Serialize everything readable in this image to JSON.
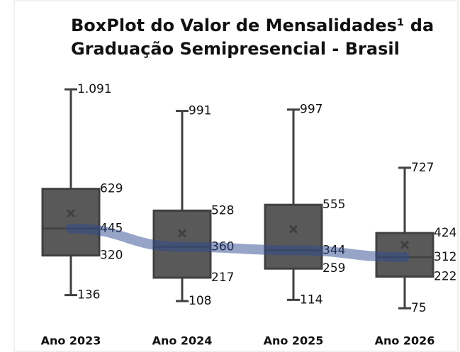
{
  "chart_data": {
    "type": "box",
    "title": [
      "BoxPlot do Valor de Mensalidades¹ da",
      "Graduação Semipresencial - Brasil"
    ],
    "categories": [
      "Ano 2023",
      "Ano 2024",
      "Ano 2025",
      "Ano 2026"
    ],
    "boxes": [
      {
        "values": [
          136,
          320,
          445,
          629,
          1091
        ],
        "value_labels": [
          "136",
          "320",
          "445",
          "629",
          "1.091"
        ],
        "mean": 515
      },
      {
        "values": [
          108,
          217,
          360,
          528,
          991
        ],
        "mean": 423
      },
      {
        "values": [
          114,
          259,
          344,
          555,
          997
        ],
        "mean": 442
      },
      {
        "values": [
          75,
          222,
          312,
          424,
          727
        ],
        "mean": 369
      }
    ],
    "color": "#595959",
    "line_color": "#2e4a8f",
    "ylim": [
      0,
      1200
    ]
  }
}
